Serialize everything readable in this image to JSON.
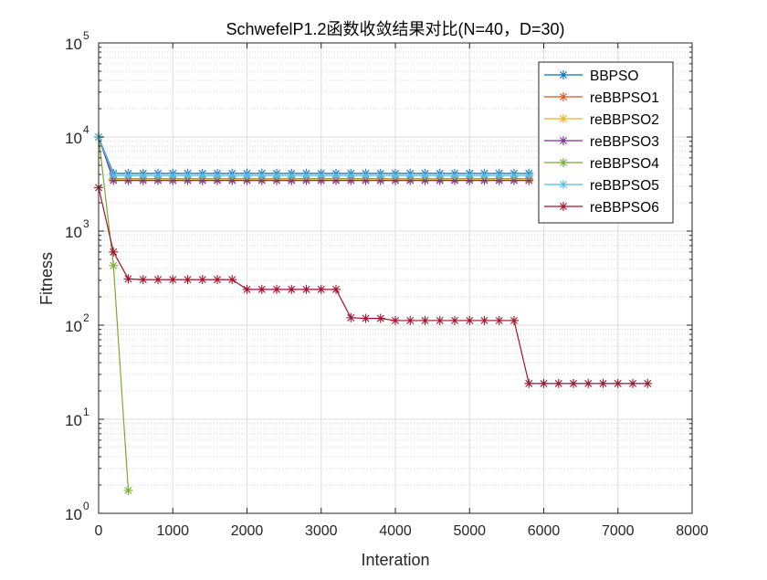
{
  "chart_data": {
    "type": "line",
    "title": "SchwefelP1.2函数收敛结果对比(N=40，D=30)",
    "xlabel": "Interation",
    "ylabel": "Fitness",
    "xlim": [
      0,
      8000
    ],
    "ylim": [
      1,
      100000
    ],
    "yscale": "log",
    "grid": true,
    "legend_position": "top-right",
    "xticks": [
      0,
      1000,
      2000,
      3000,
      4000,
      5000,
      6000,
      7000,
      8000
    ],
    "xtick_labels": [
      "0",
      "1000",
      "2000",
      "3000",
      "4000",
      "5000",
      "6000",
      "7000",
      "8000"
    ],
    "yticks": [
      {
        "value": 1,
        "base": "10",
        "exp": "0"
      },
      {
        "value": 10,
        "base": "10",
        "exp": "1"
      },
      {
        "value": 100,
        "base": "10",
        "exp": "2"
      },
      {
        "value": 1000,
        "base": "10",
        "exp": "3"
      },
      {
        "value": 10000,
        "base": "10",
        "exp": "4"
      },
      {
        "value": 100000,
        "base": "10",
        "exp": "5"
      }
    ],
    "series": [
      {
        "name": "BBPSO",
        "color": "#0072BD",
        "x": [
          0,
          200,
          400,
          600,
          800,
          1000,
          1200,
          1400,
          1600,
          1800,
          2000,
          2200,
          2400,
          2600,
          2800,
          3000,
          3200,
          3400,
          3600,
          3800,
          4000,
          4200,
          4400,
          4600,
          4800,
          5000,
          5200,
          5400,
          5600,
          5800
        ],
        "y": [
          10000,
          4100,
          4100,
          4100,
          4100,
          4100,
          4100,
          4100,
          4100,
          4100,
          4100,
          4100,
          4100,
          4100,
          4100,
          4100,
          4100,
          4100,
          4100,
          4100,
          4100,
          4100,
          4100,
          4100,
          4100,
          4100,
          4100,
          4100,
          4100,
          4100
        ]
      },
      {
        "name": "reBBPSO1",
        "color": "#D95319",
        "x": [
          0,
          200,
          400,
          600,
          800,
          1000,
          1200,
          1400,
          1600,
          1800,
          2000,
          2200,
          2400,
          2600,
          2800,
          3000,
          3200,
          3400,
          3600,
          3800,
          4000,
          4200,
          4400,
          4600,
          4800,
          5000,
          5200,
          5400,
          5600,
          5800
        ],
        "y": [
          10000,
          3600,
          3600,
          3600,
          3600,
          3600,
          3600,
          3600,
          3600,
          3600,
          3600,
          3600,
          3600,
          3600,
          3600,
          3600,
          3600,
          3600,
          3600,
          3600,
          3600,
          3600,
          3600,
          3600,
          3600,
          3600,
          3600,
          3600,
          3600,
          3600
        ]
      },
      {
        "name": "reBBPSO2",
        "color": "#EDB120",
        "x": [
          0,
          200,
          400,
          600,
          800,
          1000,
          1200,
          1400,
          1600,
          1800,
          2000,
          2200,
          2400,
          2600,
          2800,
          3000,
          3200,
          3400,
          3600,
          3800,
          4000,
          4200,
          4400,
          4600,
          4800,
          5000,
          5200,
          5400,
          5600,
          5800
        ],
        "y": [
          10000,
          3550,
          3550,
          3550,
          3550,
          3550,
          3550,
          3550,
          3550,
          3550,
          3550,
          3550,
          3550,
          3550,
          3550,
          3550,
          3550,
          3550,
          3550,
          3550,
          3550,
          3550,
          3550,
          3550,
          3550,
          3550,
          3550,
          3550,
          3550,
          3550
        ]
      },
      {
        "name": "reBBPSO3",
        "color": "#7E2F8E",
        "x": [
          0,
          200,
          400,
          600,
          800,
          1000,
          1200,
          1400,
          1600,
          1800,
          2000,
          2200,
          2400,
          2600,
          2800,
          3000,
          3200,
          3400,
          3600,
          3800,
          4000,
          4200,
          4400,
          4600,
          4800,
          5000,
          5200,
          5400,
          5600,
          5800
        ],
        "y": [
          10000,
          3450,
          3450,
          3450,
          3450,
          3450,
          3450,
          3450,
          3450,
          3450,
          3450,
          3450,
          3450,
          3450,
          3450,
          3450,
          3450,
          3450,
          3450,
          3450,
          3450,
          3450,
          3450,
          3450,
          3450,
          3450,
          3450,
          3450,
          3450,
          3450
        ]
      },
      {
        "name": "reBBPSO4",
        "color": "#77AC30",
        "x": [
          0,
          200,
          400
        ],
        "y": [
          10000,
          430,
          1.75
        ]
      },
      {
        "name": "reBBPSO5",
        "color": "#4DBEEE",
        "x": [
          0,
          200,
          400,
          600,
          800,
          1000,
          1200,
          1400,
          1600,
          1800,
          2000,
          2200,
          2400,
          2600,
          2800,
          3000,
          3200,
          3400,
          3600,
          3800,
          4000,
          4200,
          4400,
          4600,
          4800,
          5000,
          5200,
          5400,
          5600,
          5800
        ],
        "y": [
          10000,
          3900,
          3900,
          3900,
          3900,
          3900,
          3900,
          3900,
          3900,
          3900,
          3900,
          3900,
          3900,
          3900,
          3900,
          3900,
          3900,
          3900,
          3900,
          3900,
          3900,
          3900,
          3900,
          3900,
          3900,
          3900,
          3900,
          3900,
          3900,
          3900
        ]
      },
      {
        "name": "reBBPSO6",
        "color": "#A2142F",
        "x": [
          0,
          200,
          400,
          600,
          800,
          1000,
          1200,
          1400,
          1600,
          1800,
          2000,
          2200,
          2400,
          2600,
          2800,
          3000,
          3200,
          3400,
          3600,
          3800,
          4000,
          4200,
          4400,
          4600,
          4800,
          5000,
          5200,
          5400,
          5600,
          5800,
          6000,
          6200,
          6400,
          6600,
          6800,
          7000,
          7200,
          7400
        ],
        "y": [
          2900,
          600,
          310,
          305,
          305,
          305,
          305,
          305,
          305,
          305,
          240,
          240,
          240,
          240,
          240,
          240,
          240,
          120,
          118,
          118,
          112,
          112,
          112,
          112,
          112,
          112,
          112,
          112,
          112,
          24,
          24,
          24,
          24,
          24,
          24,
          24,
          24,
          24
        ]
      }
    ]
  }
}
